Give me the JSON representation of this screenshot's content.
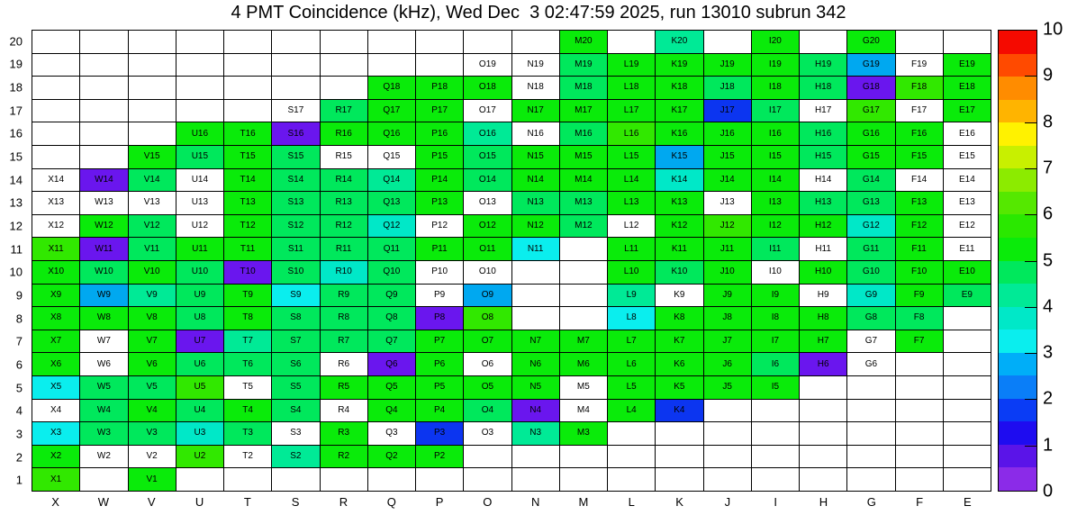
{
  "title": "4 PMT Coincidence (kHz), Wed Dec  3 02:47:59 2025, run 13010 subrun 342",
  "chart_data": {
    "type": "heatmap",
    "x_categories": [
      "X",
      "W",
      "V",
      "U",
      "T",
      "S",
      "R",
      "Q",
      "P",
      "O",
      "N",
      "M",
      "L",
      "K",
      "J",
      "I",
      "H",
      "G",
      "F",
      "E"
    ],
    "y_categories": [
      "20",
      "19",
      "18",
      "17",
      "16",
      "15",
      "14",
      "13",
      "12",
      "11",
      "10",
      "9",
      "8",
      "7",
      "6",
      "5",
      "4",
      "3",
      "2",
      "1"
    ],
    "colorbar": {
      "min": 0,
      "max": 10,
      "tick_labels": [
        "0",
        "1",
        "2",
        "3",
        "4",
        "5",
        "6",
        "7",
        "8",
        "9",
        "10"
      ],
      "palette_bottom_to_top": [
        "#8B2BE8",
        "#5A14E8",
        "#1E0CF0",
        "#0A3CF5",
        "#0A7EF8",
        "#00AEF8",
        "#0AEEEE",
        "#00E8C8",
        "#00EA96",
        "#00E85C",
        "#0AEB0A",
        "#2AE800",
        "#55E800",
        "#8CEB00",
        "#C8F000",
        "#FFF200",
        "#FFB400",
        "#FF8C00",
        "#FF4A00",
        "#F50A00"
      ]
    },
    "cell_color_legend": {
      "W": {
        "hex": "#FFFFFF",
        "approx_value_kHz": null,
        "meaning": "no data / out of range"
      },
      "G": {
        "hex": "#0AEB0A",
        "approx_value_kHz": 5.2
      },
      "YG": {
        "hex": "#31E800",
        "approx_value_kHz": 5.9
      },
      "SG": {
        "hex": "#00E85C",
        "approx_value_kHz": 4.7
      },
      "MG": {
        "hex": "#00EA96",
        "approx_value_kHz": 4.3
      },
      "TQ": {
        "hex": "#00E8C8",
        "approx_value_kHz": 3.8
      },
      "CY": {
        "hex": "#0AEEEE",
        "approx_value_kHz": 3.2
      },
      "SB": {
        "hex": "#00A8F0",
        "approx_value_kHz": 2.8
      },
      "BL": {
        "hex": "#0C35F0",
        "approx_value_kHz": 1.8
      },
      "VI": {
        "hex": "#6A16EE",
        "approx_value_kHz": 0.4
      }
    },
    "rows_top_to_bottom": [
      {
        "y": "20",
        "cells": [
          "W",
          "W",
          "W",
          "W",
          "W",
          "W",
          "W",
          "W",
          "W",
          "W",
          "W",
          "G:M20",
          "W",
          "MG:K20",
          "W",
          "G:I20",
          "W",
          "G:G20",
          "W",
          "W"
        ]
      },
      {
        "y": "19",
        "cells": [
          "W",
          "W",
          "W",
          "W",
          "W",
          "W",
          "W",
          "W",
          "W",
          "W:O19",
          "W:N19",
          "SG:M19",
          "G:L19",
          "G:K19",
          "G:J19",
          "G:I19",
          "SG:H19",
          "SB:G19",
          "W:F19",
          "G:E19"
        ]
      },
      {
        "y": "18",
        "cells": [
          "W",
          "W",
          "W",
          "W",
          "W",
          "W",
          "W",
          "G:Q18",
          "G:P18",
          "G:O18",
          "W:N18",
          "SG:M18",
          "G:L18",
          "G:K18",
          "SG:J18",
          "G:I18",
          "SG:H18",
          "VI:G18",
          "YG:F18",
          "G:E18"
        ]
      },
      {
        "y": "17",
        "cells": [
          "W",
          "W",
          "W",
          "W",
          "W",
          "W:S17",
          "SG:R17",
          "G:Q17",
          "G:P17",
          "W:O17",
          "G:N17",
          "G:M17",
          "G:L17",
          "G:K17",
          "BL:J17",
          "SG:I17",
          "W:H17",
          "YG:G17",
          "W:F17",
          "G:E17"
        ]
      },
      {
        "y": "16",
        "cells": [
          "W",
          "W",
          "W",
          "G:U16",
          "G:T16",
          "VI:S16",
          "G:R16",
          "G:Q16",
          "G:P16",
          "MG:O16",
          "W:N16",
          "SG:M16",
          "YG:L16",
          "G:K16",
          "G:J16",
          "G:I16",
          "SG:H16",
          "G:G16",
          "G:F16",
          "W:E16"
        ]
      },
      {
        "y": "15",
        "cells": [
          "W",
          "W",
          "G:V15",
          "SG:U15",
          "G:T15",
          "SG:S15",
          "W:R15",
          "W:Q15",
          "G:P15",
          "SG:O15",
          "G:N15",
          "G:M15",
          "G:L15",
          "SB:K15",
          "G:J15",
          "G:I15",
          "SG:H15",
          "G:G15",
          "G:F15",
          "W:E15"
        ]
      },
      {
        "y": "14",
        "cells": [
          "W:X14",
          "VI:W14",
          "SG:V14",
          "W:U14",
          "G:T14",
          "SG:S14",
          "SG:R14",
          "MG:Q14",
          "G:P14",
          "SG:O14",
          "G:N14",
          "G:M14",
          "G:L14",
          "TQ:K14",
          "G:J14",
          "G:I14",
          "W:H14",
          "SG:G14",
          "W:F14",
          "W:E14"
        ]
      },
      {
        "y": "13",
        "cells": [
          "W:X13",
          "W:W13",
          "W:V13",
          "W:U13",
          "G:T13",
          "SG:S13",
          "SG:R13",
          "SG:Q13",
          "G:P13",
          "W:O13",
          "SG:N13",
          "SG:M13",
          "G:L13",
          "G:K13",
          "W:J13",
          "G:I13",
          "SG:H13",
          "SG:G13",
          "G:F13",
          "W:E13"
        ]
      },
      {
        "y": "12",
        "cells": [
          "W:X12",
          "G:W12",
          "SG:V12",
          "W:U12",
          "G:T12",
          "SG:S12",
          "SG:R12",
          "TQ:Q12",
          "W:P12",
          "G:O12",
          "G:N12",
          "SG:M12",
          "W:L12",
          "G:K12",
          "YG:J12",
          "G:I12",
          "G:H12",
          "TQ:G12",
          "G:F12",
          "W:E12"
        ]
      },
      {
        "y": "11",
        "cells": [
          "YG:X11",
          "VI:W11",
          "SG:V11",
          "G:U11",
          "G:T11",
          "SG:S11",
          "SG:R11",
          "SG:Q11",
          "G:P11",
          "G:O11",
          "CY:N11",
          "W",
          "G:L11",
          "G:K11",
          "G:J11",
          "SG:I11",
          "W:H11",
          "SG:G11",
          "G:F11",
          "W:E11"
        ]
      },
      {
        "y": "10",
        "cells": [
          "G:X10",
          "SG:W10",
          "G:V10",
          "SG:U10",
          "VI:T10",
          "SG:S10",
          "TQ:R10",
          "SG:Q10",
          "W:P10",
          "W:O10",
          "W",
          "W",
          "G:L10",
          "SG:K10",
          "G:J10",
          "W:I10",
          "G:H10",
          "SG:G10",
          "G:F10",
          "G:E10"
        ]
      },
      {
        "y": "9",
        "cells": [
          "G:X9",
          "SB:W9",
          "MG:V9",
          "SG:U9",
          "G:T9",
          "CY:S9",
          "SG:R9",
          "SG:Q9",
          "W:P9",
          "SB:O9",
          "W",
          "W",
          "MG:L9",
          "W:K9",
          "G:J9",
          "G:I9",
          "W:H9",
          "TQ:G9",
          "G:F9",
          "SG:E9"
        ]
      },
      {
        "y": "8",
        "cells": [
          "G:X8",
          "G:W8",
          "G:V8",
          "SG:U8",
          "G:T8",
          "SG:S8",
          "SG:R8",
          "SG:Q8",
          "VI:P8",
          "YG:O8",
          "W",
          "W",
          "CY:L8",
          "G:K8",
          "G:J8",
          "G:I8",
          "G:H8",
          "SG:G8",
          "SG:F8",
          "W"
        ]
      },
      {
        "y": "7",
        "cells": [
          "G:X7",
          "W:W7",
          "G:V7",
          "VI:U7",
          "MG:T7",
          "SG:S7",
          "SG:R7",
          "SG:Q7",
          "G:P7",
          "G:O7",
          "G:N7",
          "G:M7",
          "G:L7",
          "G:K7",
          "G:J7",
          "G:I7",
          "G:H7",
          "W:G7",
          "G:F7",
          "W"
        ]
      },
      {
        "y": "6",
        "cells": [
          "G:X6",
          "W:W6",
          "G:V6",
          "SG:U6",
          "SG:T6",
          "SG:S6",
          "W:R6",
          "VI:Q6",
          "G:P6",
          "W:O6",
          "G:N6",
          "G:M6",
          "G:L6",
          "G:K6",
          "G:J6",
          "SG:I6",
          "VI:H6",
          "W:G6",
          "W",
          "W"
        ]
      },
      {
        "y": "5",
        "cells": [
          "CY:X5",
          "SG:W5",
          "SG:V5",
          "YG:U5",
          "W:T5",
          "SG:S5",
          "G:R5",
          "G:Q5",
          "G:P5",
          "G:O5",
          "G:N5",
          "W:M5",
          "G:L5",
          "G:K5",
          "G:J5",
          "G:I5",
          "W",
          "W",
          "W",
          "W"
        ]
      },
      {
        "y": "4",
        "cells": [
          "W:X4",
          "SG:W4",
          "G:V4",
          "SG:U4",
          "G:T4",
          "SG:S4",
          "W:R4",
          "G:Q4",
          "G:P4",
          "SG:O4",
          "VI:N4",
          "W:M4",
          "G:L4",
          "BL:K4",
          "W",
          "W",
          "W",
          "W",
          "W",
          "W"
        ]
      },
      {
        "y": "3",
        "cells": [
          "CY:X3",
          "SG:W3",
          "SG:V3",
          "TQ:U3",
          "SG:T3",
          "W:S3",
          "G:R3",
          "W:Q3",
          "BL:P3",
          "W:O3",
          "MG:N3",
          "G:M3",
          "W",
          "W",
          "W",
          "W",
          "W",
          "W",
          "W",
          "W"
        ]
      },
      {
        "y": "2",
        "cells": [
          "G:X2",
          "W:W2",
          "W:V2",
          "YG:U2",
          "W:T2",
          "MG:S2",
          "G:R2",
          "G:Q2",
          "G:P2",
          "W",
          "W",
          "W",
          "W",
          "W",
          "W",
          "W",
          "W",
          "W",
          "W",
          "W"
        ]
      },
      {
        "y": "1",
        "cells": [
          "YG:X1",
          "W",
          "G:V1",
          "W",
          "W",
          "W",
          "W",
          "W",
          "W",
          "W",
          "W",
          "W",
          "W",
          "W",
          "W",
          "W",
          "W",
          "W",
          "W",
          "W"
        ]
      }
    ]
  }
}
